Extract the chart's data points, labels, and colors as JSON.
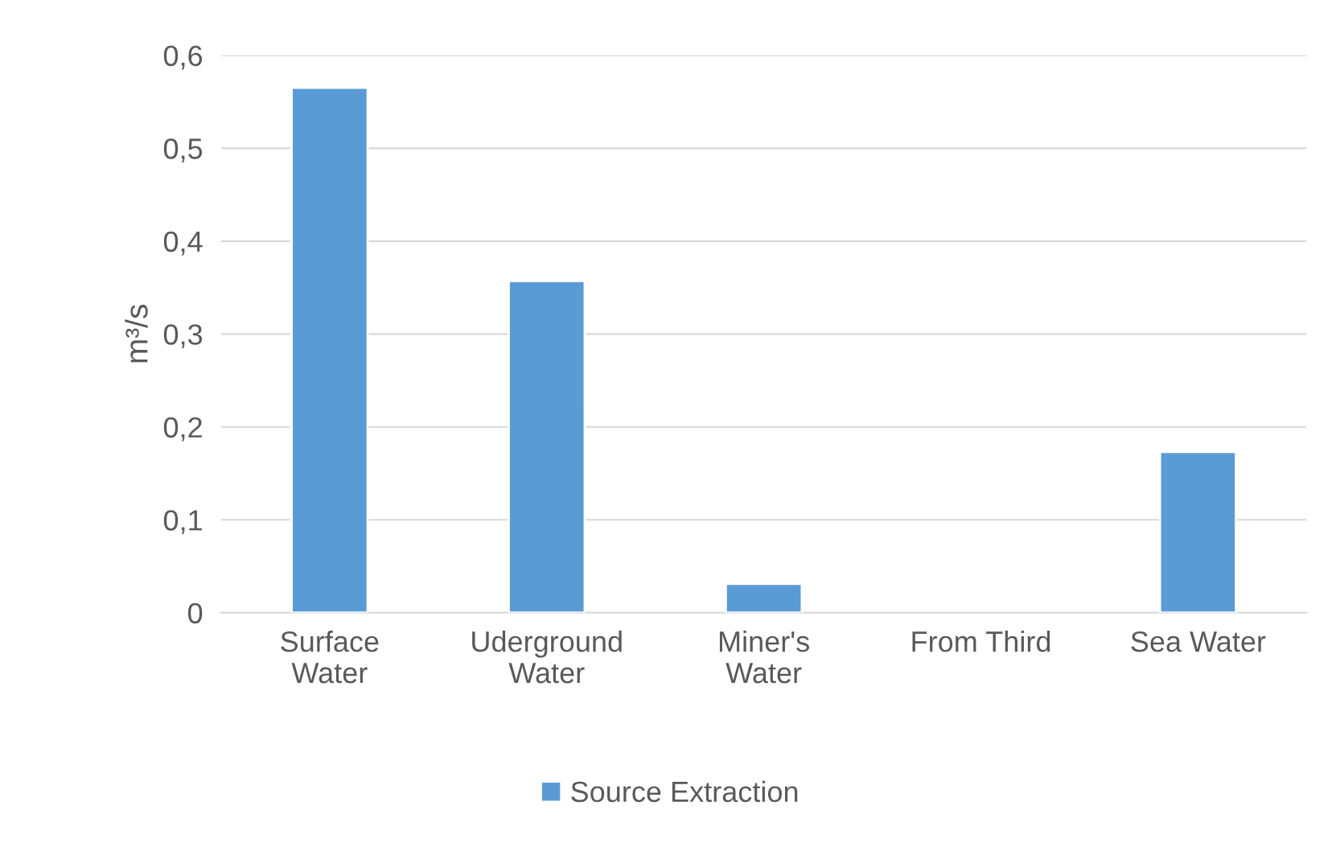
{
  "chart_data": {
    "type": "bar",
    "ylabel": "m³/s",
    "categories": [
      "Surface\nWater",
      "Uderground\nWater",
      "Miner's\nWater",
      "From Third",
      "Sea Water"
    ],
    "series": [
      {
        "name": "Source Extraction",
        "color": "#5b9bd5",
        "values": [
          0.565,
          0.357,
          0.031,
          null,
          0.173
        ]
      }
    ],
    "ylim": [
      0,
      0.6
    ],
    "yticks": [
      0,
      {
        "value": 0.1,
        "label": "0,1"
      },
      {
        "value": 0.2,
        "label": "0,2"
      },
      {
        "value": 0.3,
        "label": "0,3"
      },
      {
        "value": 0.4,
        "label": "0,4"
      },
      {
        "value": 0.5,
        "label": "0,5"
      },
      {
        "value": 0.6,
        "label": "0,6"
      }
    ],
    "grid": "y",
    "legend": "bottom"
  }
}
